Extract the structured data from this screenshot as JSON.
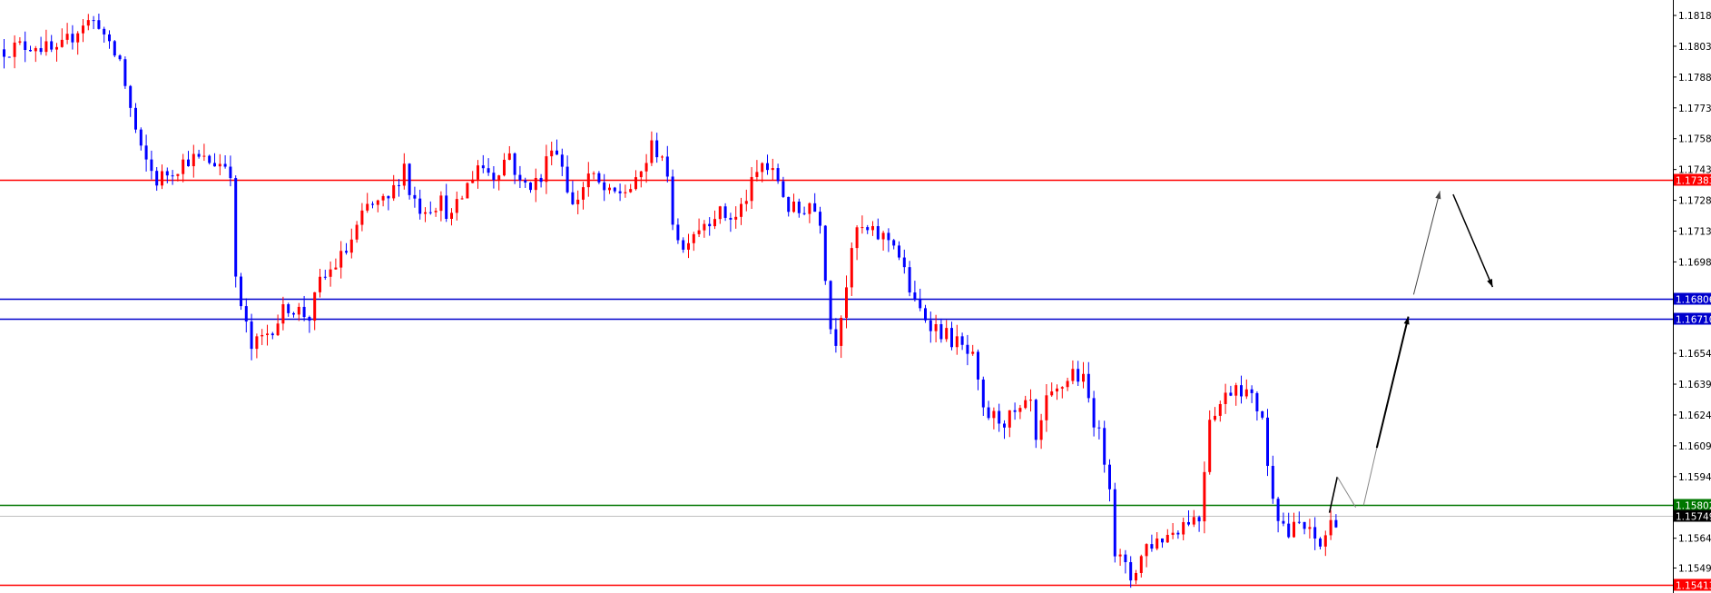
{
  "chart_data": {
    "type": "candlestick",
    "title": "",
    "ylim": [
      1.15413,
      1.18185
    ],
    "grid": false,
    "colors": {
      "bull": "#ff0000",
      "bear": "#0000ff",
      "axis": "#000000"
    },
    "y_ticks": [
      "1.18185",
      "1.18035",
      "1.17885",
      "1.17735",
      "1.17585",
      "1.17435",
      "1.17285",
      "1.17135",
      "1.16985",
      "1.16540",
      "1.16390",
      "1.16240",
      "1.16090",
      "1.15940",
      "1.15640",
      "1.15495"
    ],
    "bar_count": 254,
    "close_path": [
      [
        0,
        1.1802
      ],
      [
        6,
        1.18047
      ],
      [
        10,
        1.17994
      ],
      [
        15,
        1.18153
      ],
      [
        18,
        1.18153
      ],
      [
        20,
        1.1802
      ],
      [
        22,
        1.17967
      ],
      [
        24,
        1.17728
      ],
      [
        26,
        1.17516
      ],
      [
        29,
        1.17383
      ],
      [
        35,
        1.17489
      ],
      [
        42,
        1.17463
      ],
      [
        43,
        1.17436
      ],
      [
        44,
        1.16879
      ],
      [
        47,
        1.1656
      ],
      [
        50,
        1.1664
      ],
      [
        54,
        1.16773
      ],
      [
        58,
        1.16719
      ],
      [
        60,
        1.16879
      ],
      [
        65,
        1.17038
      ],
      [
        69,
        1.1725
      ],
      [
        73,
        1.17277
      ],
      [
        76,
        1.17463
      ],
      [
        77,
        1.1733
      ],
      [
        79,
        1.1725
      ],
      [
        83,
        1.17277
      ],
      [
        85,
        1.17197
      ],
      [
        90,
        1.17463
      ],
      [
        93,
        1.1741
      ],
      [
        96,
        1.17516
      ],
      [
        98,
        1.17357
      ],
      [
        102,
        1.17383
      ],
      [
        104,
        1.17569
      ],
      [
        106,
        1.17463
      ],
      [
        108,
        1.1725
      ],
      [
        111,
        1.1741
      ],
      [
        115,
        1.17304
      ],
      [
        120,
        1.17357
      ],
      [
        123,
        1.17543
      ],
      [
        125,
        1.17516
      ],
      [
        127,
        1.17197
      ],
      [
        129,
        1.17038
      ],
      [
        130,
        1.17118
      ],
      [
        135,
        1.17224
      ],
      [
        139,
        1.17197
      ],
      [
        142,
        1.17357
      ],
      [
        144,
        1.17463
      ],
      [
        147,
        1.17383
      ],
      [
        149,
        1.1725
      ],
      [
        151,
        1.17224
      ],
      [
        153,
        1.17277
      ],
      [
        155,
        1.17197
      ],
      [
        157,
        1.16666
      ],
      [
        158,
        1.16613
      ],
      [
        160,
        1.16879
      ],
      [
        162,
        1.17144
      ],
      [
        165,
        1.17118
      ],
      [
        169,
        1.17091
      ],
      [
        173,
        1.16773
      ],
      [
        177,
        1.16666
      ],
      [
        181,
        1.16587
      ],
      [
        184,
        1.16507
      ],
      [
        186,
        1.16242
      ],
      [
        190,
        1.16215
      ],
      [
        193,
        1.16242
      ],
      [
        195,
        1.16295
      ],
      [
        196,
        1.16082
      ],
      [
        198,
        1.16295
      ],
      [
        200,
        1.16348
      ],
      [
        203,
        1.16454
      ],
      [
        205,
        1.16401
      ],
      [
        208,
        1.16135
      ],
      [
        210,
        1.15923
      ],
      [
        211,
        1.15578
      ],
      [
        214,
        1.15445
      ],
      [
        217,
        1.15604
      ],
      [
        221,
        1.15657
      ],
      [
        225,
        1.15737
      ],
      [
        227,
        1.15737
      ],
      [
        229,
        1.16242
      ],
      [
        231,
        1.16295
      ],
      [
        234,
        1.16401
      ],
      [
        236,
        1.16348
      ],
      [
        239,
        1.16242
      ],
      [
        240,
        1.15976
      ],
      [
        242,
        1.15764
      ],
      [
        244,
        1.15657
      ],
      [
        246,
        1.15711
      ],
      [
        248,
        1.15657
      ],
      [
        250,
        1.15604
      ],
      [
        252,
        1.15711
      ],
      [
        253,
        1.15737
      ]
    ],
    "levels": [
      {
        "price": 1.17383,
        "label": "1.17383",
        "color": "#ff0000"
      },
      {
        "price": 1.16806,
        "label": "1.16806",
        "color": "#0000cc"
      },
      {
        "price": 1.1671,
        "label": "1.16710",
        "color": "#0000cc"
      },
      {
        "price": 1.15802,
        "label": "1.15802",
        "color": "#007700"
      },
      {
        "price": 1.15749,
        "label": "1.15749",
        "color": "#000000",
        "line_color": "#c0c0c0"
      },
      {
        "price": 1.15413,
        "label": "1.15413",
        "color": "#ff0000"
      }
    ],
    "annotations": [
      {
        "from": [
          252,
          1.15764
        ],
        "to": [
          253.5,
          1.15939
        ],
        "color": "#000000",
        "width": 1.6,
        "arrow": false
      },
      {
        "from": [
          253.5,
          1.15939
        ],
        "to": [
          257,
          1.1579
        ],
        "color": "#888888",
        "width": 1,
        "arrow": false
      },
      {
        "from": [
          258.5,
          1.15801
        ],
        "to": [
          261,
          1.1608
        ],
        "color": "#888888",
        "width": 1,
        "arrow": false
      },
      {
        "from": [
          261,
          1.1608
        ],
        "to": [
          267,
          1.16719
        ],
        "color": "#000000",
        "width": 2,
        "arrow": true
      },
      {
        "from": [
          268,
          1.16826
        ],
        "to": [
          273,
          1.1733
        ],
        "color": "#444444",
        "width": 1,
        "arrow": true
      },
      {
        "from": [
          275.5,
          1.17314
        ],
        "to": [
          283,
          1.16863
        ],
        "color": "#000000",
        "width": 1.5,
        "arrow": true
      }
    ]
  }
}
